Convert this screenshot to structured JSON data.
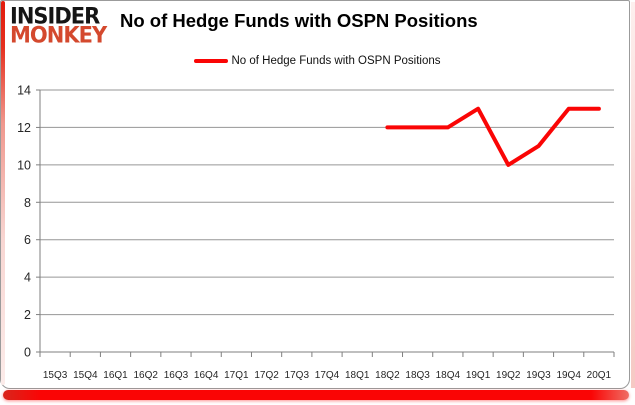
{
  "brand": {
    "line1": "INSIDER",
    "line2": "MONKEY",
    "color": "#d4492e"
  },
  "title": "No of Hedge Funds with OSPN Positions",
  "legend": {
    "label": "No of Hedge Funds with OSPN Positions",
    "line_color": "#fa0505"
  },
  "chart_data": {
    "type": "line",
    "title": "No of Hedge Funds with OSPN Positions",
    "categories": [
      "15Q3",
      "15Q4",
      "16Q1",
      "16Q2",
      "16Q3",
      "16Q4",
      "17Q1",
      "17Q2",
      "17Q3",
      "17Q4",
      "18Q1",
      "18Q2",
      "18Q3",
      "18Q4",
      "19Q1",
      "19Q2",
      "19Q3",
      "19Q4",
      "20Q1"
    ],
    "series": [
      {
        "name": "No of Hedge Funds with OSPN Positions",
        "color": "#fa0505",
        "values": [
          null,
          null,
          null,
          null,
          null,
          null,
          null,
          null,
          null,
          null,
          null,
          12,
          12,
          12,
          13,
          10,
          11,
          13,
          13
        ]
      }
    ],
    "xlabel": "",
    "ylabel": "",
    "ylim": [
      0,
      14
    ],
    "yticks": [
      0,
      2,
      4,
      6,
      8,
      10,
      12,
      14
    ],
    "grid": "horizontal",
    "legend_position": "top-center",
    "colors": {
      "line": "#fa0505",
      "gridline": "#969696",
      "axis": "#7f7f7f",
      "tick_label": "#262626",
      "title": "#000000"
    }
  }
}
